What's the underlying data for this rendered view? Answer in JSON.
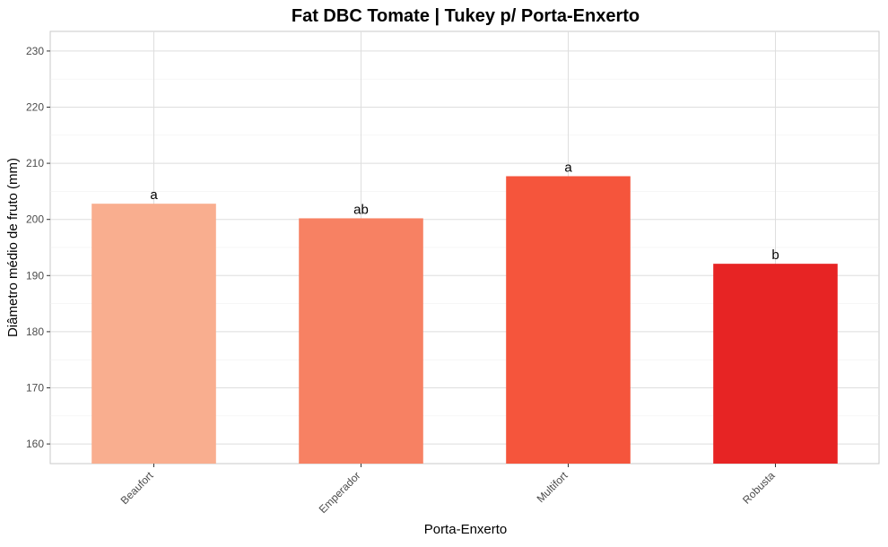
{
  "chart_data": {
    "type": "bar",
    "title": "Fat DBC Tomate | Tukey p/ Porta-Enxerto",
    "xlabel": "Porta-Enxerto",
    "ylabel": "Diâmetro médio de fruto (mm)",
    "categories": [
      "Beaufort",
      "Emperador",
      "Multifort",
      "Robusta"
    ],
    "values": [
      202.8,
      200.2,
      207.7,
      192.1
    ],
    "letters": [
      "a",
      "ab",
      "a",
      "b"
    ],
    "colors": [
      "#f9ae8f",
      "#f78163",
      "#f5553c",
      "#e72424"
    ],
    "ylim": [
      156.5,
      233.5
    ],
    "yticks": [
      160,
      170,
      180,
      190,
      200,
      210,
      220,
      230
    ],
    "grid": true,
    "legend": "none"
  }
}
